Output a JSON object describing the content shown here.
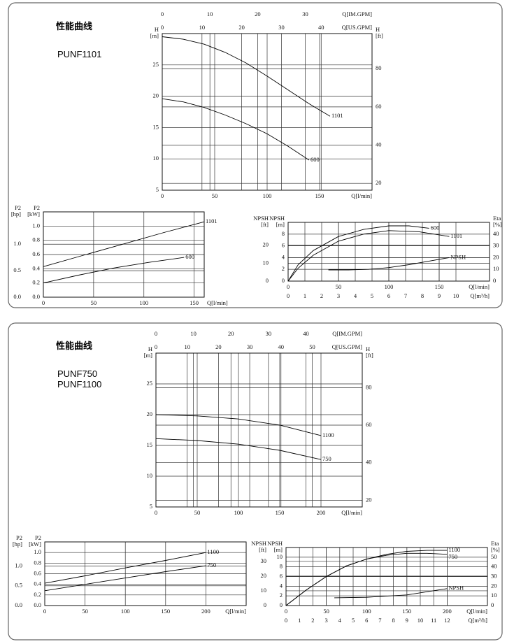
{
  "panels": [
    {
      "title": "性能曲线",
      "models": [
        "PUNF1101"
      ]
    },
    {
      "title": "性能曲线",
      "models": [
        "PUNF750",
        "PUNF1100"
      ]
    }
  ],
  "chart_data": [
    {
      "type": "line",
      "grid": true,
      "xlabel": "Q[l/min]",
      "xlim": [
        0,
        200
      ],
      "xticks": [
        0,
        50,
        100,
        150
      ],
      "x2label": "Q[US.GPM]",
      "x2lim": [
        0,
        52.8
      ],
      "x2ticks": [
        0,
        10,
        20,
        30,
        40
      ],
      "x3label": "Q[IM.GPM]",
      "x3lim": [
        0,
        44
      ],
      "x3ticks": [
        0,
        10,
        20,
        30
      ],
      "ylabel": [
        "H",
        "[m]"
      ],
      "ylim": [
        5,
        30
      ],
      "yticks": [
        5,
        10,
        15,
        20,
        25
      ],
      "y2label": [
        "H",
        "[ft]"
      ],
      "y2lim": [
        16.4,
        98.4
      ],
      "y2ticks": [
        20,
        40,
        60,
        80
      ],
      "series": [
        {
          "name": "1101",
          "color": "#000000",
          "x": [
            0,
            20,
            40,
            60,
            80,
            100,
            120,
            140,
            160
          ],
          "values": [
            29.5,
            29.1,
            28.3,
            27.0,
            25.3,
            23.2,
            21.0,
            18.8,
            16.8
          ]
        },
        {
          "name": "600",
          "color": "#000000",
          "x": [
            0,
            20,
            40,
            60,
            80,
            100,
            120,
            140
          ],
          "values": [
            19.6,
            19.1,
            18.2,
            17.0,
            15.6,
            14.0,
            12.0,
            9.8
          ]
        }
      ]
    },
    {
      "type": "line",
      "grid": true,
      "xlabel": "Q[l/min]",
      "xlim": [
        0,
        160
      ],
      "xticks": [
        0,
        50,
        100,
        150
      ],
      "ylabel": [
        "P2",
        "[kW]"
      ],
      "ylim": [
        0,
        1.2
      ],
      "yticks": [
        {
          "value": 0,
          "label": "0.0"
        },
        0.2,
        0.4,
        0.6,
        0.8,
        {
          "value": 1,
          "label": "1.0"
        }
      ],
      "y2label": [
        "P2",
        "[hp]"
      ],
      "y2lim": [
        0,
        1.61
      ],
      "y2ticks": [
        {
          "value": 0,
          "label": "0.0"
        },
        0.5,
        {
          "value": 1,
          "label": "1.0"
        }
      ],
      "series": [
        {
          "name": "1101",
          "color": "#000000",
          "x": [
            0,
            40,
            80,
            120,
            160
          ],
          "values": [
            0.43,
            0.59,
            0.75,
            0.91,
            1.06
          ]
        },
        {
          "name": "600",
          "color": "#000000",
          "x": [
            0,
            35,
            70,
            105,
            140
          ],
          "values": [
            0.2,
            0.31,
            0.41,
            0.49,
            0.56
          ]
        }
      ]
    },
    {
      "type": "line",
      "grid": true,
      "xlabel": "Q[l/min]",
      "xlim": [
        0,
        200
      ],
      "xticks": [
        0,
        50,
        100,
        150
      ],
      "x2label": "Q[m³/h]",
      "x2lim": [
        0,
        12
      ],
      "x2ticks": [
        0,
        1,
        2,
        3,
        4,
        5,
        6,
        7,
        8,
        9,
        10
      ],
      "ylabel": [
        "NPSH",
        "[m]"
      ],
      "ylim": [
        0,
        10
      ],
      "yticks": [
        0,
        2,
        4,
        6,
        8
      ],
      "y3label": [
        "NPSH",
        "[ft]"
      ],
      "y3lim": [
        0,
        32.8
      ],
      "y3ticks": [
        0,
        10,
        20
      ],
      "y2label": [
        "Eta",
        "[%]"
      ],
      "y2lim": [
        0,
        50
      ],
      "y2ticks": [
        0,
        10,
        20,
        30,
        40
      ],
      "series": [
        {
          "name": "600",
          "color": "#000000",
          "axis": "y2",
          "x": [
            0,
            10,
            25,
            50,
            75,
            100,
            120,
            140
          ],
          "values": [
            0,
            14,
            26,
            38,
            44,
            47,
            47,
            45
          ]
        },
        {
          "name": "1101",
          "color": "#000000",
          "axis": "y2",
          "x": [
            0,
            10,
            25,
            50,
            75,
            100,
            130,
            160
          ],
          "values": [
            0,
            11,
            22,
            34,
            40,
            43,
            42,
            38
          ]
        },
        {
          "name": "NPSH",
          "color": "#000000",
          "x": [
            40,
            60,
            80,
            100,
            120,
            140,
            160
          ],
          "values": [
            1.9,
            1.9,
            2.0,
            2.3,
            2.8,
            3.4,
            4.0
          ]
        }
      ]
    },
    {
      "type": "line",
      "grid": true,
      "xlabel": "Q[l/min]",
      "xlim": [
        0,
        250
      ],
      "xticks": [
        0,
        50,
        100,
        150,
        200
      ],
      "x2label": "Q[US.GPM]",
      "x2lim": [
        0,
        66
      ],
      "x2ticks": [
        0,
        10,
        20,
        30,
        40,
        50
      ],
      "x3label": "Q[IM.GPM]",
      "x3lim": [
        0,
        55
      ],
      "x3ticks": [
        0,
        10,
        20,
        30,
        40
      ],
      "ylabel": [
        "H",
        "[m]"
      ],
      "ylim": [
        5,
        30
      ],
      "yticks": [
        5,
        10,
        15,
        20,
        25
      ],
      "y2label": [
        "H",
        "[ft]"
      ],
      "y2lim": [
        16.4,
        98.4
      ],
      "y2ticks": [
        20,
        40,
        60,
        80
      ],
      "series": [
        {
          "name": "1100",
          "color": "#000000",
          "x": [
            0,
            50,
            100,
            150,
            200
          ],
          "values": [
            20.0,
            19.8,
            19.3,
            18.3,
            16.6
          ]
        },
        {
          "name": "750",
          "color": "#000000",
          "x": [
            0,
            50,
            100,
            150,
            200
          ],
          "values": [
            16.1,
            15.8,
            15.2,
            14.2,
            12.7
          ]
        }
      ]
    },
    {
      "type": "line",
      "grid": true,
      "xlabel": "Q[l/min]",
      "xlim": [
        0,
        250
      ],
      "xticks": [
        0,
        50,
        100,
        150,
        200
      ],
      "ylabel": [
        "P2",
        "[kW]"
      ],
      "ylim": [
        0,
        1.2
      ],
      "yticks": [
        {
          "value": 0,
          "label": "0.0"
        },
        0.2,
        0.4,
        0.6,
        0.8,
        {
          "value": 1,
          "label": "1.0"
        }
      ],
      "y2label": [
        "P2",
        "[hp]"
      ],
      "y2lim": [
        0,
        1.61
      ],
      "y2ticks": [
        {
          "value": 0,
          "label": "0.0"
        },
        0.5,
        {
          "value": 1,
          "label": "1.0"
        }
      ],
      "series": [
        {
          "name": "1100",
          "color": "#000000",
          "x": [
            0,
            50,
            100,
            150,
            200
          ],
          "values": [
            0.42,
            0.56,
            0.71,
            0.85,
            1.0
          ]
        },
        {
          "name": "750",
          "color": "#000000",
          "x": [
            0,
            50,
            100,
            150,
            200
          ],
          "values": [
            0.28,
            0.4,
            0.52,
            0.64,
            0.75
          ]
        }
      ]
    },
    {
      "type": "line",
      "grid": true,
      "xlabel": "Q[l/min]",
      "xlim": [
        0,
        250
      ],
      "xticks": [
        0,
        50,
        100,
        150,
        200
      ],
      "x2label": "Q[m³/h]",
      "x2lim": [
        0,
        15
      ],
      "x2ticks": [
        0,
        1,
        2,
        3,
        4,
        5,
        6,
        7,
        8,
        9,
        10,
        11,
        12
      ],
      "ylabel": [
        "NPSH",
        "[m]"
      ],
      "ylim": [
        0,
        12
      ],
      "yticks": [
        0,
        2,
        4,
        6,
        8,
        10
      ],
      "y3label": [
        "NPSH",
        "[ft]"
      ],
      "y3lim": [
        0,
        39.4
      ],
      "y3ticks": [
        0,
        10,
        20,
        30
      ],
      "y2label": [
        "Eta",
        "[%]"
      ],
      "y2lim": [
        0,
        60
      ],
      "y2ticks": [
        0,
        10,
        20,
        30,
        40,
        50
      ],
      "series": [
        {
          "name": "1100",
          "color": "#000000",
          "axis": "y2",
          "x": [
            0,
            25,
            50,
            75,
            100,
            125,
            150,
            175,
            200
          ],
          "values": [
            0,
            16,
            30,
            41,
            48,
            53,
            56,
            57,
            57
          ]
        },
        {
          "name": "750",
          "color": "#000000",
          "axis": "y2",
          "x": [
            0,
            25,
            50,
            75,
            100,
            125,
            150,
            175,
            200
          ],
          "values": [
            0,
            16,
            30,
            41,
            48,
            52,
            54,
            54,
            53
          ]
        },
        {
          "name": "NPSH",
          "color": "#000000",
          "x": [
            60,
            100,
            150,
            200
          ],
          "values": [
            1.6,
            1.7,
            2.2,
            3.5
          ]
        }
      ]
    }
  ]
}
